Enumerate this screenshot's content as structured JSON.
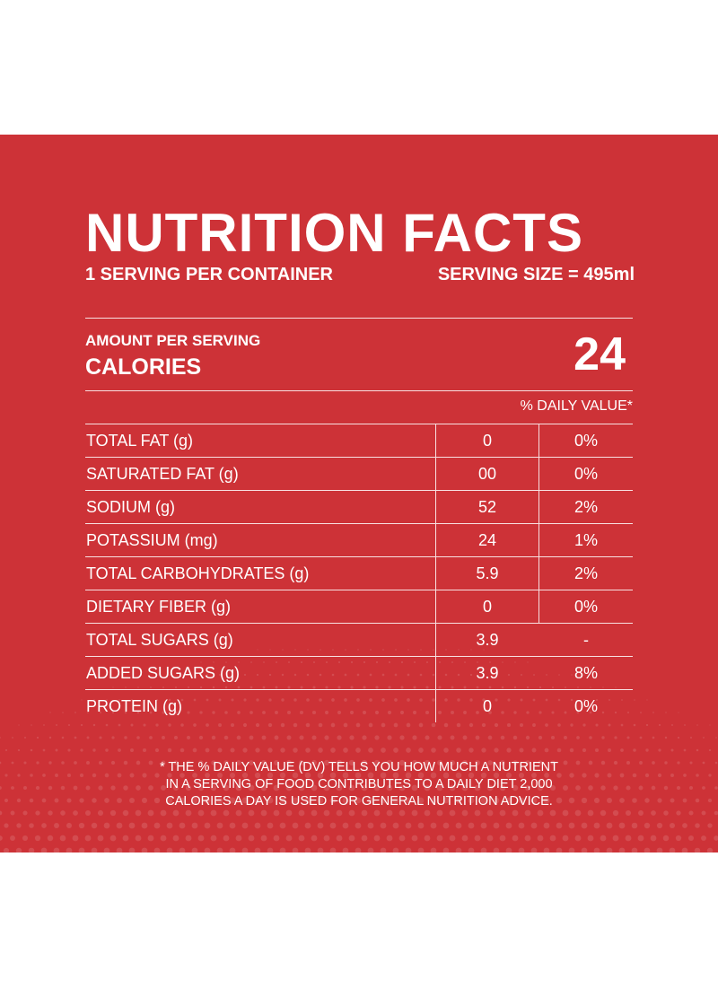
{
  "label": {
    "title": "NUTRITION FACTS",
    "servings_per_container": "1 SERVING PER CONTAINER",
    "serving_size": "SERVING SIZE = 495ml",
    "amount_per_serving": "AMOUNT PER SERVING",
    "calories_label": "CALORIES",
    "calories_value": "24",
    "daily_value_header": "% DAILY VALUE*",
    "nutrients": [
      {
        "name": "TOTAL FAT (g)",
        "amount": "0",
        "dv": "0%"
      },
      {
        "name": "SATURATED FAT (g)",
        "amount": "00",
        "dv": "0%"
      },
      {
        "name": "SODIUM (g)",
        "amount": "52",
        "dv": "2%"
      },
      {
        "name": "POTASSIUM (mg)",
        "amount": "24",
        "dv": "1%"
      },
      {
        "name": "TOTAL CARBOHYDRATES (g)",
        "amount": "5.9",
        "dv": "2%"
      },
      {
        "name": "DIETARY FIBER (g)",
        "amount": "0",
        "dv": "0%"
      },
      {
        "name": "TOTAL SUGARS (g)",
        "amount": "3.9",
        "dv": "-"
      },
      {
        "name": "ADDED SUGARS (g)",
        "amount": "3.9",
        "dv": "8%"
      },
      {
        "name": "PROTEIN (g)",
        "amount": "0",
        "dv": "0%"
      }
    ],
    "footnote_lines": [
      "* THE % DAILY VALUE (DV) TELLS YOU HOW MUCH A NUTRIENT",
      "IN A SERVING OF FOOD CONTRIBUTES TO A DAILY DIET 2,000",
      "CALORIES A DAY IS USED FOR GENERAL NUTRITION ADVICE."
    ]
  },
  "colors": {
    "panel_background": "#cd3237",
    "text": "#ffffff",
    "page_background": "#ffffff"
  }
}
